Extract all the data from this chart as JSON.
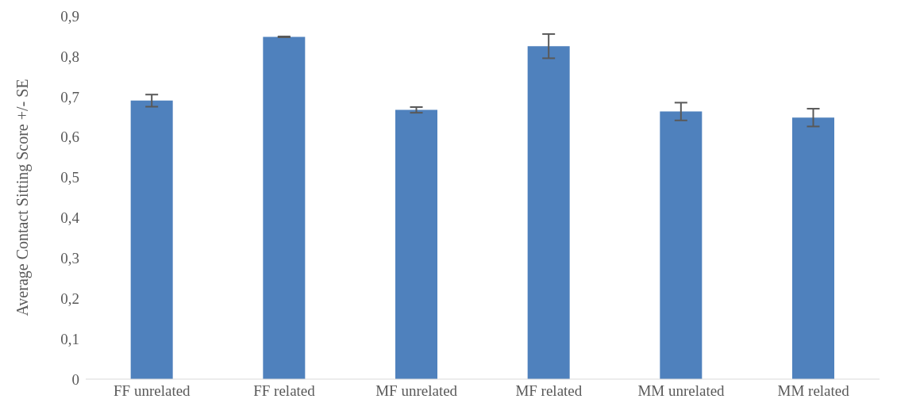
{
  "chart_data": {
    "type": "bar",
    "ylabel": "Average Contact Sitting Score +/- SE",
    "categories": [
      "FF unrelated",
      "FF related",
      "MF unrelated",
      "MF related",
      "MM unrelated",
      "MM related"
    ],
    "values": [
      0.69,
      0.848,
      0.667,
      0.825,
      0.663,
      0.648
    ],
    "errors": [
      0.015,
      0.001,
      0.007,
      0.03,
      0.022,
      0.022
    ],
    "color": "#4f81bd",
    "ylim": [
      0,
      0.9
    ],
    "yticks": [
      {
        "value": 0,
        "label": "0"
      },
      {
        "value": 0.1,
        "label": "0,1"
      },
      {
        "value": 0.2,
        "label": "0,2"
      },
      {
        "value": 0.3,
        "label": "0,3"
      },
      {
        "value": 0.4,
        "label": "0,4"
      },
      {
        "value": 0.5,
        "label": "0,5"
      },
      {
        "value": 0.6,
        "label": "0,6"
      },
      {
        "value": 0.7,
        "label": "0,7"
      },
      {
        "value": 0.8,
        "label": "0,8"
      },
      {
        "value": 0.9,
        "label": "0,9"
      }
    ],
    "grid": false
  }
}
